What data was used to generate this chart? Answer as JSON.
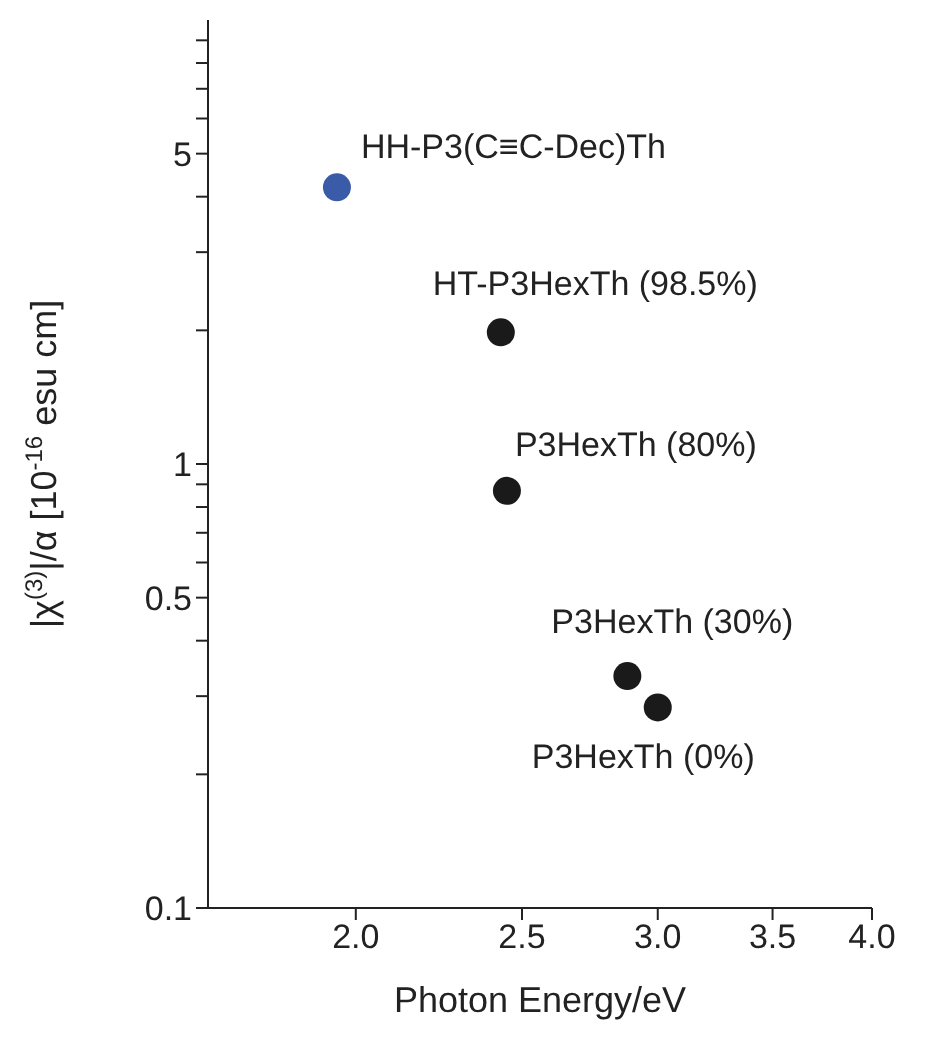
{
  "chart_data": {
    "type": "scatter",
    "xlabel": "Photon Energy/eV",
    "ylabel": "|χ$^{(3)}$|/α [10$^{-16}$ esu cm]",
    "x": [
      1.95,
      2.43,
      2.45,
      2.88,
      3.0
    ],
    "series": [
      {
        "colors": [
          "#3a5ba8",
          "#1a1a1a",
          "#1a1a1a",
          "#1a1a1a",
          "#1a1a1a"
        ],
        "values": [
          4.2,
          1.98,
          0.87,
          0.333,
          0.283
        ]
      }
    ],
    "log": "xy",
    "xlim": [
      1.64,
      4
    ],
    "xticks": [
      {
        "value": 2,
        "label": "2.0"
      },
      {
        "value": 2.5,
        "label": "2.5"
      },
      {
        "value": 3,
        "label": "3.0"
      },
      {
        "value": 3.5,
        "label": "3.5"
      },
      {
        "value": 4,
        "label": "4.0"
      }
    ],
    "ylim": [
      0.1,
      10
    ],
    "yticks": [
      0.1,
      {
        "value": 0.2,
        "label": null
      },
      {
        "value": 0.3,
        "label": null
      },
      {
        "value": 0.4,
        "label": null
      },
      0.5,
      {
        "value": 0.6,
        "label": null
      },
      {
        "value": 0.7,
        "label": null
      },
      {
        "value": 0.8,
        "label": null
      },
      {
        "value": 0.9,
        "label": null
      },
      1,
      {
        "value": 2,
        "label": null
      },
      {
        "value": 3,
        "label": null
      },
      {
        "value": 4,
        "label": null
      },
      5,
      {
        "value": 6,
        "label": null
      },
      {
        "value": 7,
        "label": null
      },
      {
        "value": 8,
        "label": null
      },
      {
        "value": 9,
        "label": null
      }
    ],
    "grid": false,
    "legend": false,
    "marker": "circle",
    "annotations": [
      {
        "text": "HH-P3(C≡C-Dec)Th",
        "x": 1.95,
        "y": 4.2
      },
      {
        "text": "HT-P3HexTh (98.5%)",
        "x": 2.43,
        "y": 1.98
      },
      {
        "text": "P3HexTh (80%)",
        "x": 2.45,
        "y": 0.87
      },
      {
        "text": "P3HexTh (30%)",
        "x": 2.88,
        "y": 0.333
      },
      {
        "text": "P3HexTh (0%)",
        "x": 3.0,
        "y": 0.283
      }
    ]
  }
}
